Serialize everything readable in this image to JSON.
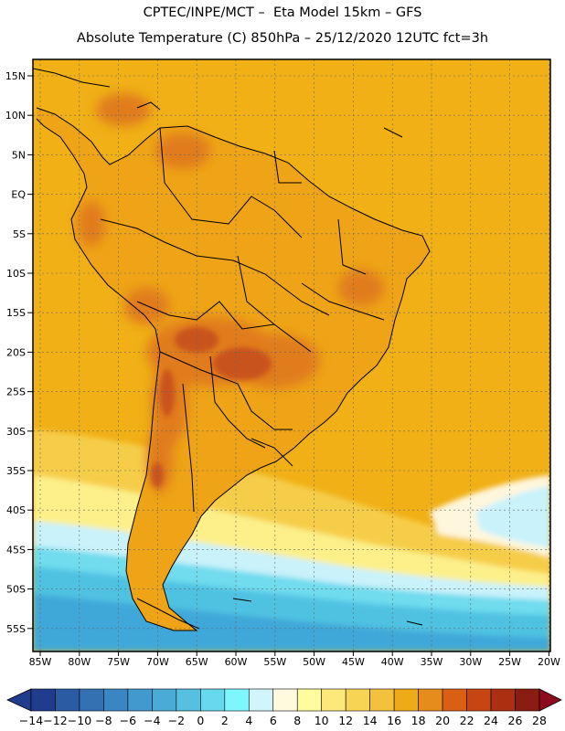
{
  "header": {
    "title": "CPTEC/INPE/MCT –  Eta Model 15km – GFS",
    "subtitle": "Absolute Temperature (C) 850hPa – 25/12/2020 12UTC fct=3h"
  },
  "axes": {
    "lat_labels": [
      "15N",
      "10N",
      "5N",
      "EQ",
      "5S",
      "10S",
      "15S",
      "20S",
      "25S",
      "30S",
      "35S",
      "40S",
      "45S",
      "50S",
      "55S"
    ],
    "lon_labels": [
      "85W",
      "80W",
      "75W",
      "70W",
      "65W",
      "60W",
      "55W",
      "50W",
      "45W",
      "40W",
      "35W",
      "30W",
      "25W",
      "20W"
    ]
  },
  "colorbar": {
    "labels": [
      "-14",
      "-12",
      "-10",
      "-8",
      "-6",
      "-4",
      "-2",
      "0",
      "2",
      "4",
      "6",
      "8",
      "10",
      "12",
      "14",
      "16",
      "18",
      "20",
      "22",
      "24",
      "26",
      "28"
    ],
    "colors": [
      "#1f3d8c",
      "#2a5ba3",
      "#3371b3",
      "#3a86c2",
      "#4299cd",
      "#4aabd6",
      "#55c0e0",
      "#66d9ee",
      "#7df7fb",
      "#d2f4fb",
      "#fff9e0",
      "#fffca0",
      "#fde87a",
      "#f8d455",
      "#f2c23d",
      "#eeab17",
      "#e58c1c",
      "#d96012",
      "#c74512",
      "#ab2f10",
      "#8a1d12"
    ],
    "start_color": "#1f3d8c",
    "end_color": "#8e0b1e"
  },
  "palette": {
    "ocean_warm": "#f0b016",
    "land_warm": "#eea416",
    "hot": "#e07c1c",
    "hottest": "#c9531a",
    "mid_yellow": "#f6cd48",
    "light_yellow": "#fdf08a",
    "pale": "#fff7dd",
    "pale_cyan": "#c9f2fb",
    "cyan": "#6fdcee",
    "teal": "#4fc2e2",
    "blue": "#3fa8d8",
    "coast": "#000000",
    "grid": "#666666"
  }
}
